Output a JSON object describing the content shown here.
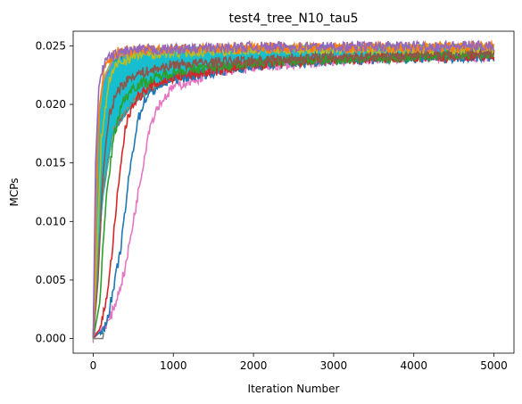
{
  "chart_data": {
    "type": "line",
    "title": "test4_tree_N10_tau5",
    "xlabel": "Iteration Number",
    "ylabel": "MCPs",
    "xlim": [
      -250,
      5250
    ],
    "ylim": [
      -0.00125,
      0.02625
    ],
    "xticks": [
      0,
      1000,
      2000,
      3000,
      4000,
      5000
    ],
    "yticks": [
      0.0,
      0.005,
      0.01,
      0.015,
      0.02,
      0.025
    ],
    "xtick_labels": [
      "0",
      "1000",
      "2000",
      "3000",
      "4000",
      "5000"
    ],
    "ytick_labels": [
      "0.000",
      "0.005",
      "0.010",
      "0.015",
      "0.020",
      "0.025"
    ],
    "grid": false,
    "legend": "none",
    "palette": [
      "#1f77b4",
      "#ff7f0e",
      "#2ca02c",
      "#d62728",
      "#9467bd",
      "#8c564b",
      "#e377c2",
      "#7f7f7f",
      "#bcbd22",
      "#17becf"
    ],
    "band": {
      "color": "#17becf",
      "upper": [
        [
          0,
          0.0002
        ],
        [
          40,
          0.0175
        ],
        [
          120,
          0.0222
        ],
        [
          250,
          0.0242
        ],
        [
          500,
          0.0247
        ],
        [
          1000,
          0.0249
        ],
        [
          2000,
          0.025
        ],
        [
          3000,
          0.0251
        ],
        [
          4000,
          0.0251
        ],
        [
          5000,
          0.0251
        ]
      ],
      "lower": [
        [
          0,
          0.0
        ],
        [
          40,
          0.004
        ],
        [
          120,
          0.012
        ],
        [
          250,
          0.0175
        ],
        [
          500,
          0.02
        ],
        [
          750,
          0.0212
        ],
        [
          1000,
          0.022
        ],
        [
          1500,
          0.0227
        ],
        [
          2000,
          0.0231
        ],
        [
          3000,
          0.0236
        ],
        [
          4000,
          0.0239
        ],
        [
          5000,
          0.024
        ]
      ]
    },
    "series": [
      {
        "color": "#e377c2",
        "points": [
          [
            0,
            0.0003
          ],
          [
            100,
            0.0008
          ],
          [
            200,
            0.0015
          ],
          [
            300,
            0.0035
          ],
          [
            400,
            0.006
          ],
          [
            500,
            0.01
          ],
          [
            600,
            0.014
          ],
          [
            700,
            0.018
          ],
          [
            800,
            0.0198
          ],
          [
            1000,
            0.0215
          ],
          [
            1500,
            0.0227
          ],
          [
            2000,
            0.0232
          ],
          [
            3000,
            0.0237
          ],
          [
            4000,
            0.024
          ],
          [
            5000,
            0.0241
          ]
        ]
      },
      {
        "color": "#1f77b4",
        "points": [
          [
            0,
            0.0
          ],
          [
            150,
            0.001
          ],
          [
            250,
            0.004
          ],
          [
            350,
            0.008
          ],
          [
            450,
            0.014
          ],
          [
            550,
            0.0185
          ],
          [
            650,
            0.0205
          ],
          [
            800,
            0.0215
          ],
          [
            1000,
            0.0222
          ],
          [
            2000,
            0.0233
          ],
          [
            3000,
            0.0238
          ],
          [
            5000,
            0.0241
          ]
        ]
      },
      {
        "color": "#d62728",
        "points": [
          [
            0,
            0.0
          ],
          [
            100,
            0.001
          ],
          [
            200,
            0.005
          ],
          [
            300,
            0.012
          ],
          [
            400,
            0.018
          ],
          [
            500,
            0.0202
          ],
          [
            700,
            0.0215
          ],
          [
            1000,
            0.0223
          ],
          [
            2000,
            0.0234
          ],
          [
            3000,
            0.0238
          ],
          [
            5000,
            0.0242
          ]
        ]
      },
      {
        "color": "#2ca02c",
        "points": [
          [
            0,
            0.0
          ],
          [
            80,
            0.003
          ],
          [
            150,
            0.011
          ],
          [
            250,
            0.017
          ],
          [
            350,
            0.02
          ],
          [
            500,
            0.0215
          ],
          [
            1000,
            0.0228
          ],
          [
            2000,
            0.0236
          ],
          [
            5000,
            0.0243
          ]
        ]
      },
      {
        "color": "#8c564b",
        "points": [
          [
            0,
            0.0
          ],
          [
            60,
            0.005
          ],
          [
            120,
            0.014
          ],
          [
            200,
            0.019
          ],
          [
            300,
            0.0212
          ],
          [
            500,
            0.0225
          ],
          [
            1000,
            0.0234
          ],
          [
            3000,
            0.0241
          ],
          [
            5000,
            0.0244
          ]
        ]
      },
      {
        "color": "#bcbd22",
        "points": [
          [
            0,
            0.0
          ],
          [
            50,
            0.008
          ],
          [
            100,
            0.017
          ],
          [
            200,
            0.022
          ],
          [
            300,
            0.0235
          ],
          [
            600,
            0.0243
          ],
          [
            2000,
            0.0247
          ],
          [
            5000,
            0.0248
          ]
        ]
      },
      {
        "color": "#ff7f0e",
        "points": [
          [
            0,
            0.0
          ],
          [
            40,
            0.012
          ],
          [
            80,
            0.02
          ],
          [
            150,
            0.0235
          ],
          [
            300,
            0.0245
          ],
          [
            1000,
            0.0248
          ],
          [
            5000,
            0.0249
          ]
        ]
      },
      {
        "color": "#9467bd",
        "points": [
          [
            0,
            0.0
          ],
          [
            30,
            0.015
          ],
          [
            70,
            0.0215
          ],
          [
            150,
            0.0238
          ],
          [
            400,
            0.0246
          ],
          [
            2000,
            0.0249
          ],
          [
            5000,
            0.025
          ]
        ]
      },
      {
        "color": "#7f7f7f",
        "points": [
          [
            0,
            0.0
          ],
          [
            120,
            0.0
          ],
          [
            130,
            0.0005
          ]
        ]
      }
    ]
  }
}
